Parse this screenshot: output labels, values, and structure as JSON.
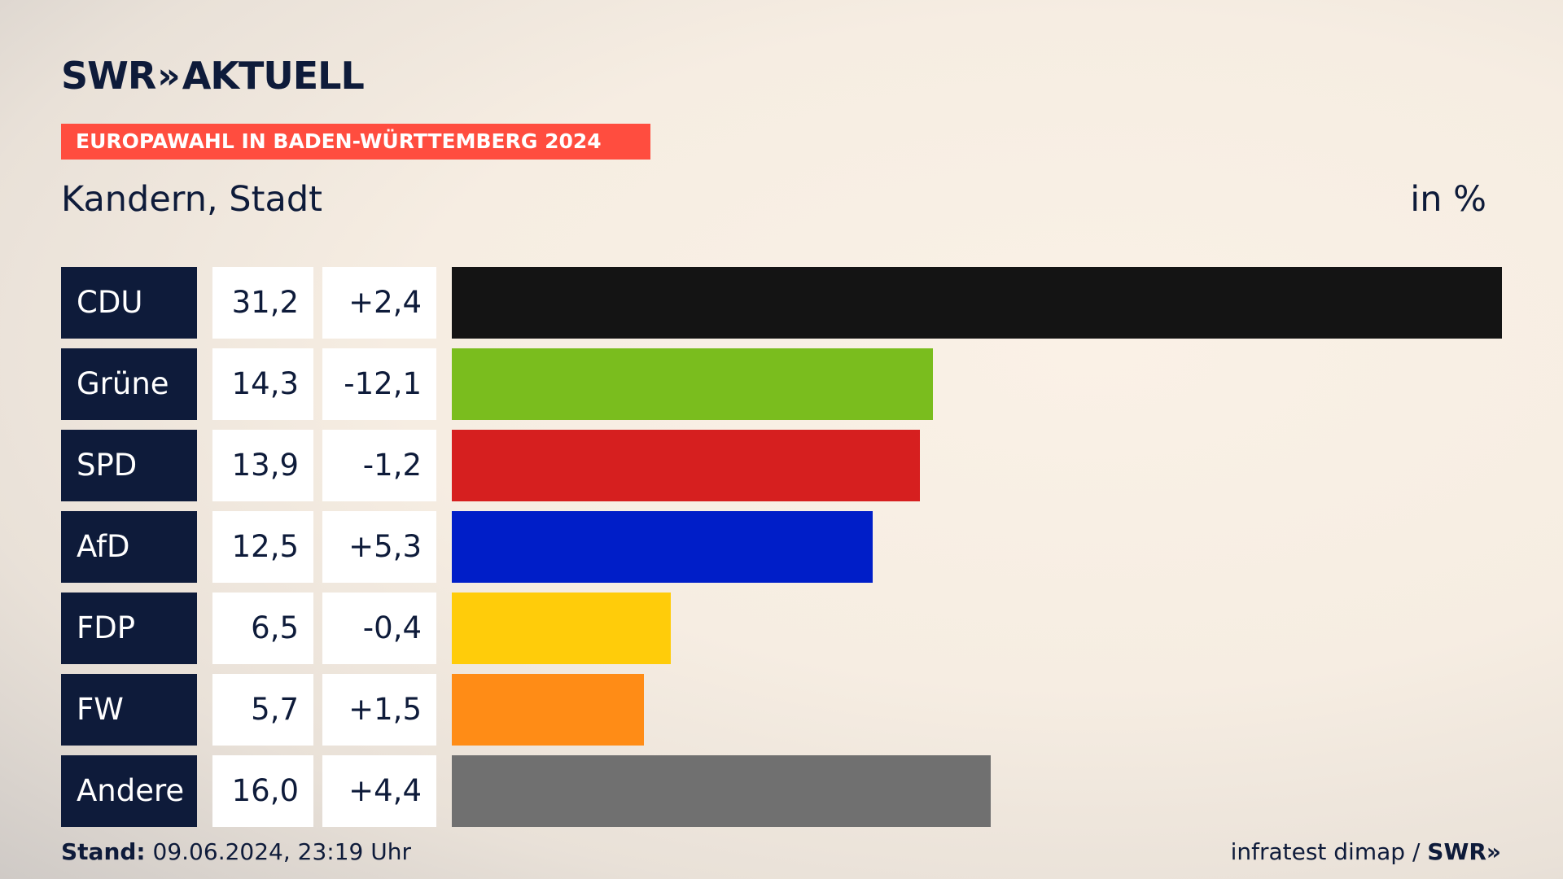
{
  "brand": {
    "logo_left": "SWR",
    "logo_chevrons": "»",
    "logo_right": "AKTUELL"
  },
  "headline": "EUROPAWAHL IN BADEN-WÜRTTEMBERG 2024",
  "location": "Kandern, Stadt",
  "unit": "in %",
  "footer": {
    "stand_label": "Stand:",
    "stand_value": "09.06.2024, 23:19 Uhr",
    "source": "infratest dimap /",
    "source_brand": "SWR»"
  },
  "chart_data": {
    "type": "bar",
    "orientation": "horizontal",
    "categories": [
      "CDU",
      "Grüne",
      "SPD",
      "AfD",
      "FDP",
      "FW",
      "Andere"
    ],
    "values": [
      31.2,
      14.3,
      13.9,
      12.5,
      6.5,
      5.7,
      16.0
    ],
    "value_labels": [
      "31,2",
      "14,3",
      "13,9",
      "12,5",
      "6,5",
      "5,7",
      "16,0"
    ],
    "diff_labels": [
      "+2,4",
      "-12,1",
      "-1,2",
      "+5,3",
      "-0,4",
      "+1,5",
      "+4,4"
    ],
    "colors": [
      "#141414",
      "#7abd1e",
      "#d61f1f",
      "#001ec8",
      "#ffcc0a",
      "#ff8c16",
      "#707070"
    ],
    "xlim": [
      0,
      31.2
    ],
    "grid": false,
    "legend": "none"
  }
}
